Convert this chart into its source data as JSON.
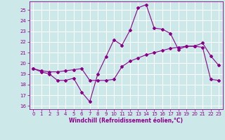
{
  "xlabel": "Windchill (Refroidissement éolien,°C)",
  "xlim": [
    -0.5,
    23.5
  ],
  "ylim": [
    15.7,
    25.8
  ],
  "yticks": [
    16,
    17,
    18,
    19,
    20,
    21,
    22,
    23,
    24,
    25
  ],
  "xticks": [
    0,
    1,
    2,
    3,
    4,
    5,
    6,
    7,
    8,
    9,
    10,
    11,
    12,
    13,
    14,
    15,
    16,
    17,
    18,
    19,
    20,
    21,
    22,
    23
  ],
  "background_color": "#cce8e8",
  "grid_color": "#ffffff",
  "line_color": "#8b008b",
  "curve1_x": [
    0,
    1,
    2,
    3,
    4,
    5,
    6,
    7,
    8,
    9,
    10,
    11,
    12,
    13,
    14,
    15,
    16,
    17,
    18,
    19,
    20,
    21,
    22,
    23
  ],
  "curve1_y": [
    19.5,
    19.2,
    19.0,
    18.4,
    18.4,
    18.6,
    17.3,
    16.4,
    19.0,
    20.6,
    22.2,
    21.7,
    23.1,
    25.2,
    25.5,
    23.3,
    23.2,
    22.8,
    21.3,
    21.6,
    21.6,
    21.9,
    20.7,
    19.8
  ],
  "curve2_x": [
    0,
    1,
    2,
    3,
    4,
    5,
    6,
    7,
    8,
    9,
    10,
    11,
    12,
    13,
    14,
    15,
    16,
    17,
    18,
    19,
    20,
    21,
    22,
    23
  ],
  "curve2_y": [
    19.5,
    19.3,
    19.2,
    19.2,
    19.3,
    19.4,
    19.5,
    18.4,
    18.4,
    18.4,
    18.5,
    19.7,
    20.2,
    20.5,
    20.8,
    21.0,
    21.2,
    21.4,
    21.5,
    21.6,
    21.6,
    21.5,
    18.5,
    18.4
  ],
  "xlabel_fontsize": 5.5,
  "tick_fontsize": 5,
  "marker_size": 2.0,
  "linewidth": 0.8
}
